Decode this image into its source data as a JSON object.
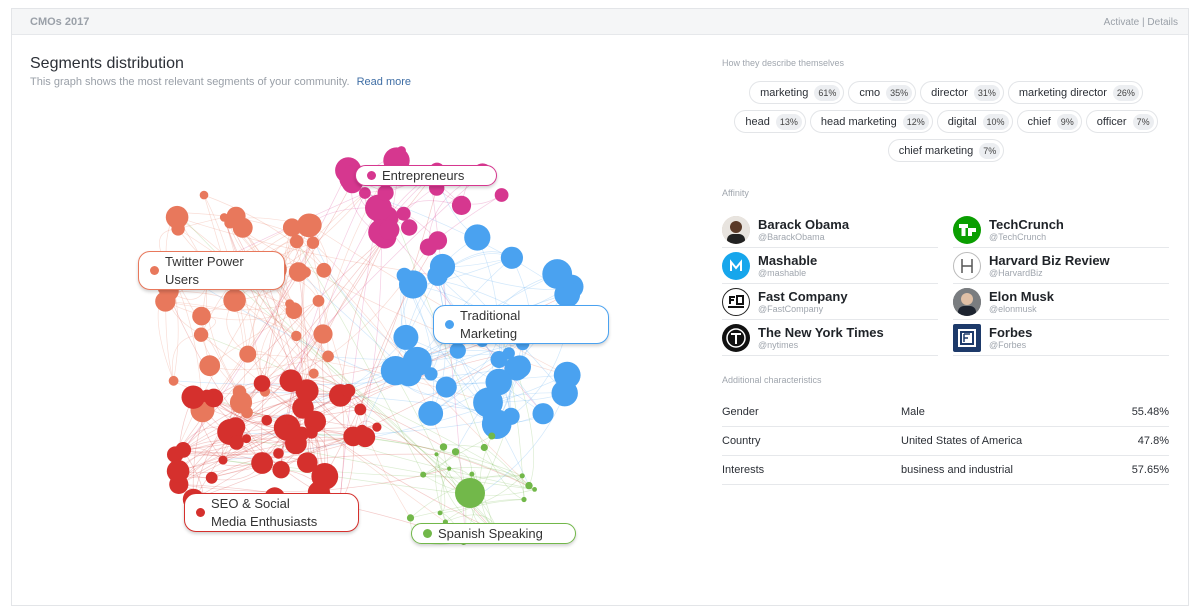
{
  "header": {
    "title": "CMOs 2017",
    "activate": "Activate",
    "separator": "|",
    "details": "Details"
  },
  "segments": {
    "title": "Segments distribution",
    "description": "This graph shows the most relevant segments of your community.",
    "read_more": "Read more",
    "labels": {
      "entrepreneurs": "Entrepreneurs",
      "twitter_power_1": "Twitter Power",
      "twitter_power_2": "Users",
      "traditional_1": "Traditional",
      "traditional_2": "Marketing",
      "seo_1": "SEO & Social",
      "seo_2": "Media Enthusiasts",
      "spanish": "Spanish Speaking"
    },
    "colors": {
      "entrepreneurs": "#d6378f",
      "twitter_power": "#e8785c",
      "traditional": "#4aa2f0",
      "seo": "#d5302d",
      "spanish": "#72b84a"
    }
  },
  "describe": {
    "title": "How they describe themselves",
    "tags": [
      {
        "label": "marketing",
        "pct": "61%"
      },
      {
        "label": "cmo",
        "pct": "35%"
      },
      {
        "label": "director",
        "pct": "31%"
      },
      {
        "label": "marketing director",
        "pct": "26%"
      },
      {
        "label": "head",
        "pct": "13%"
      },
      {
        "label": "head marketing",
        "pct": "12%"
      },
      {
        "label": "digital",
        "pct": "10%"
      },
      {
        "label": "chief",
        "pct": "9%"
      },
      {
        "label": "officer",
        "pct": "7%"
      },
      {
        "label": "chief marketing",
        "pct": "7%"
      }
    ]
  },
  "affinity": {
    "title": "Affinity",
    "items": [
      {
        "name": "Barack Obama",
        "handle": "@BarackObama",
        "icon": "avatar"
      },
      {
        "name": "TechCrunch",
        "handle": "@TechCrunch",
        "icon": "techcrunch-logo"
      },
      {
        "name": "Mashable",
        "handle": "@mashable",
        "icon": "mashable-logo"
      },
      {
        "name": "Harvard Biz Review",
        "handle": "@HarvardBiz",
        "icon": "hbr-logo"
      },
      {
        "name": "Fast Company",
        "handle": "@FastCompany",
        "icon": "fastcompany-logo"
      },
      {
        "name": "Elon Musk",
        "handle": "@elonmusk",
        "icon": "avatar"
      },
      {
        "name": "The New York Times",
        "handle": "@nytimes",
        "icon": "nyt-logo"
      },
      {
        "name": "Forbes",
        "handle": "@Forbes",
        "icon": "forbes-logo"
      }
    ]
  },
  "characteristics": {
    "title": "Additional characteristics",
    "rows": [
      {
        "key": "Gender",
        "value": "Male",
        "pct": "55.48%"
      },
      {
        "key": "Country",
        "value": "United States of America",
        "pct": "47.8%"
      },
      {
        "key": "Interests",
        "value": "business and industrial",
        "pct": "57.65%"
      }
    ]
  }
}
